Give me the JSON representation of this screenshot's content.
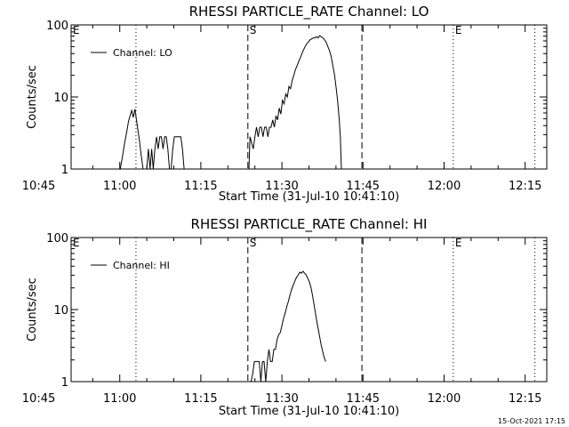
{
  "footer": {
    "timestamp": "15-Oct-2021 17:15"
  },
  "chart_data": [
    {
      "type": "line",
      "title": "RHESSI PARTICLE_RATE Channel: LO",
      "xlabel": "Start Time (31-Jul-10 10:41:10)",
      "ylabel": "Counts/sec",
      "yscale": "log",
      "ylim": [
        1,
        100
      ],
      "xlim_minutes": [
        10.0,
        98.0
      ],
      "y_ticks": [
        {
          "v": 1,
          "label": "1"
        },
        {
          "v": 10,
          "label": "10"
        },
        {
          "v": 100,
          "label": "100"
        }
      ],
      "x_ticks": [
        {
          "t": 4,
          "label": "10:45"
        },
        {
          "t": 19,
          "label": "11:00"
        },
        {
          "t": 34,
          "label": "11:15"
        },
        {
          "t": 49,
          "label": "11:30"
        },
        {
          "t": 64,
          "label": "11:45"
        },
        {
          "t": 79,
          "label": "12:00"
        },
        {
          "t": 94,
          "label": "12:15"
        }
      ],
      "markers": [
        {
          "t": 22.0,
          "style": "dotted",
          "label": ""
        },
        {
          "t": 42.7,
          "style": "dashed",
          "label": "S"
        },
        {
          "t": 63.8,
          "style": "dashed",
          "label": ""
        },
        {
          "t": 80.7,
          "style": "dotted",
          "label": "E"
        },
        {
          "t": 95.8,
          "style": "dotted",
          "label": ""
        }
      ],
      "edge_labels": [
        {
          "text": "E",
          "position": "top-left"
        }
      ],
      "legend": {
        "label": "Channel: LO",
        "position": "top-left"
      },
      "series": [
        {
          "name": "Channel: LO",
          "segments": [
            [
              [
                19.1,
                1.0
              ],
              [
                19.5,
                1.5
              ],
              [
                19.9,
                2.3
              ],
              [
                20.3,
                3.3
              ],
              [
                20.6,
                4.5
              ],
              [
                20.9,
                5.5
              ],
              [
                21.2,
                6.5
              ],
              [
                21.5,
                5.2
              ],
              [
                21.8,
                6.8
              ],
              [
                22.2,
                4.2
              ],
              [
                22.6,
                2.6
              ],
              [
                23.0,
                1.5
              ],
              [
                23.3,
                1.0
              ]
            ],
            [
              [
                24.0,
                1.0
              ],
              [
                24.3,
                1.9
              ],
              [
                24.6,
                1.0
              ],
              [
                24.9,
                1.9
              ],
              [
                25.2,
                1.0
              ],
              [
                25.5,
                1.9
              ],
              [
                25.8,
                2.8
              ],
              [
                26.1,
                1.9
              ],
              [
                26.4,
                2.8
              ],
              [
                26.7,
                2.8
              ],
              [
                27.0,
                1.9
              ],
              [
                27.3,
                2.8
              ],
              [
                27.6,
                2.8
              ],
              [
                27.9,
                1.9
              ],
              [
                28.2,
                1.0
              ],
              [
                28.5,
                1.0
              ],
              [
                28.8,
                1.9
              ],
              [
                29.1,
                2.8
              ],
              [
                29.5,
                2.8
              ],
              [
                29.9,
                2.8
              ],
              [
                30.3,
                2.8
              ],
              [
                30.6,
                1.9
              ],
              [
                30.9,
                1.0
              ]
            ],
            [
              [
                42.9,
                1.0
              ],
              [
                43.1,
                2.8
              ],
              [
                43.4,
                2.3
              ],
              [
                43.7,
                1.9
              ],
              [
                44.0,
                2.8
              ],
              [
                44.3,
                3.8
              ],
              [
                44.6,
                2.8
              ],
              [
                44.9,
                3.8
              ],
              [
                45.2,
                3.8
              ],
              [
                45.5,
                2.8
              ],
              [
                45.8,
                3.8
              ],
              [
                46.1,
                3.8
              ],
              [
                46.4,
                2.8
              ],
              [
                46.7,
                3.8
              ],
              [
                47.0,
                3.8
              ],
              [
                47.3,
                4.8
              ],
              [
                47.6,
                3.8
              ],
              [
                47.9,
                5.5
              ],
              [
                48.2,
                4.8
              ],
              [
                48.5,
                7.0
              ],
              [
                48.8,
                5.8
              ],
              [
                49.1,
                9.0
              ],
              [
                49.4,
                8.0
              ],
              [
                49.7,
                11.0
              ],
              [
                50.0,
                10.0
              ],
              [
                50.3,
                14.0
              ],
              [
                50.6,
                13.0
              ],
              [
                50.9,
                17.0
              ],
              [
                51.2,
                20.0
              ],
              [
                51.5,
                24.0
              ],
              [
                51.8,
                27.0
              ],
              [
                52.1,
                31.0
              ],
              [
                52.4,
                35.0
              ],
              [
                52.7,
                40.0
              ],
              [
                53.0,
                45.0
              ],
              [
                53.3,
                50.0
              ],
              [
                53.6,
                55.0
              ],
              [
                53.9,
                58.0
              ],
              [
                54.2,
                62.0
              ],
              [
                54.5,
                64.0
              ],
              [
                54.8,
                66.0
              ],
              [
                55.1,
                66.0
              ],
              [
                55.4,
                69.0
              ],
              [
                55.7,
                66.0
              ],
              [
                56.0,
                71.0
              ],
              [
                56.3,
                68.0
              ],
              [
                56.6,
                66.0
              ],
              [
                56.9,
                62.0
              ],
              [
                57.2,
                57.0
              ],
              [
                57.5,
                50.0
              ],
              [
                57.8,
                44.0
              ],
              [
                58.1,
                37.0
              ],
              [
                58.4,
                28.0
              ],
              [
                58.7,
                21.0
              ],
              [
                59.0,
                14.0
              ],
              [
                59.3,
                9.0
              ],
              [
                59.6,
                5.0
              ],
              [
                59.8,
                2.8
              ],
              [
                60.0,
                1.0
              ]
            ]
          ]
        }
      ]
    },
    {
      "type": "line",
      "title": "RHESSI PARTICLE_RATE Channel: HI",
      "xlabel": "Start Time (31-Jul-10 10:41:10)",
      "ylabel": "Counts/sec",
      "yscale": "log",
      "ylim": [
        1,
        100
      ],
      "xlim_minutes": [
        10.0,
        98.0
      ],
      "y_ticks": [
        {
          "v": 1,
          "label": "1"
        },
        {
          "v": 10,
          "label": "10"
        },
        {
          "v": 100,
          "label": "100"
        }
      ],
      "x_ticks": [
        {
          "t": 4,
          "label": "10:45"
        },
        {
          "t": 19,
          "label": "11:00"
        },
        {
          "t": 34,
          "label": "11:15"
        },
        {
          "t": 49,
          "label": "11:30"
        },
        {
          "t": 64,
          "label": "11:45"
        },
        {
          "t": 79,
          "label": "12:00"
        },
        {
          "t": 94,
          "label": "12:15"
        }
      ],
      "markers": [
        {
          "t": 22.0,
          "style": "dotted",
          "label": ""
        },
        {
          "t": 42.7,
          "style": "dashed",
          "label": "S"
        },
        {
          "t": 63.8,
          "style": "dashed",
          "label": ""
        },
        {
          "t": 80.7,
          "style": "dotted",
          "label": "E"
        },
        {
          "t": 95.8,
          "style": "dotted",
          "label": ""
        }
      ],
      "edge_labels": [
        {
          "text": "E",
          "position": "top-left"
        }
      ],
      "legend": {
        "label": "Channel: HI",
        "position": "top-left"
      },
      "series": [
        {
          "name": "Channel: HI",
          "segments": [
            [
              [
                43.3,
                1.0
              ],
              [
                43.6,
                1.3
              ],
              [
                43.9,
                1.9
              ],
              [
                44.2,
                1.9
              ],
              [
                44.5,
                1.9
              ],
              [
                44.8,
                1.9
              ],
              [
                45.1,
                1.0
              ],
              [
                45.4,
                1.9
              ],
              [
                45.7,
                1.9
              ],
              [
                46.0,
                1.0
              ],
              [
                46.3,
                1.9
              ],
              [
                46.6,
                2.8
              ],
              [
                46.9,
                1.9
              ],
              [
                47.2,
                1.9
              ],
              [
                47.5,
                2.8
              ],
              [
                47.8,
                2.8
              ],
              [
                48.1,
                3.8
              ],
              [
                48.4,
                4.5
              ],
              [
                48.7,
                4.8
              ],
              [
                49.0,
                6.0
              ],
              [
                49.3,
                7.5
              ],
              [
                49.6,
                9.0
              ],
              [
                49.9,
                11.0
              ],
              [
                50.2,
                13.0
              ],
              [
                50.5,
                16.0
              ],
              [
                50.8,
                19.0
              ],
              [
                51.1,
                22.0
              ],
              [
                51.4,
                25.0
              ],
              [
                51.7,
                28.0
              ],
              [
                52.0,
                30.0
              ],
              [
                52.3,
                33.0
              ],
              [
                52.6,
                32.0
              ],
              [
                52.9,
                34.0
              ],
              [
                53.2,
                32.0
              ],
              [
                53.5,
                30.0
              ],
              [
                53.8,
                27.0
              ],
              [
                54.1,
                24.0
              ],
              [
                54.4,
                20.0
              ],
              [
                54.7,
                15.0
              ],
              [
                55.0,
                11.0
              ],
              [
                55.3,
                8.0
              ],
              [
                55.6,
                6.0
              ],
              [
                55.9,
                4.5
              ],
              [
                56.2,
                3.4
              ],
              [
                56.5,
                2.7
              ],
              [
                56.8,
                2.2
              ],
              [
                57.1,
                1.9
              ]
            ]
          ]
        }
      ]
    }
  ]
}
